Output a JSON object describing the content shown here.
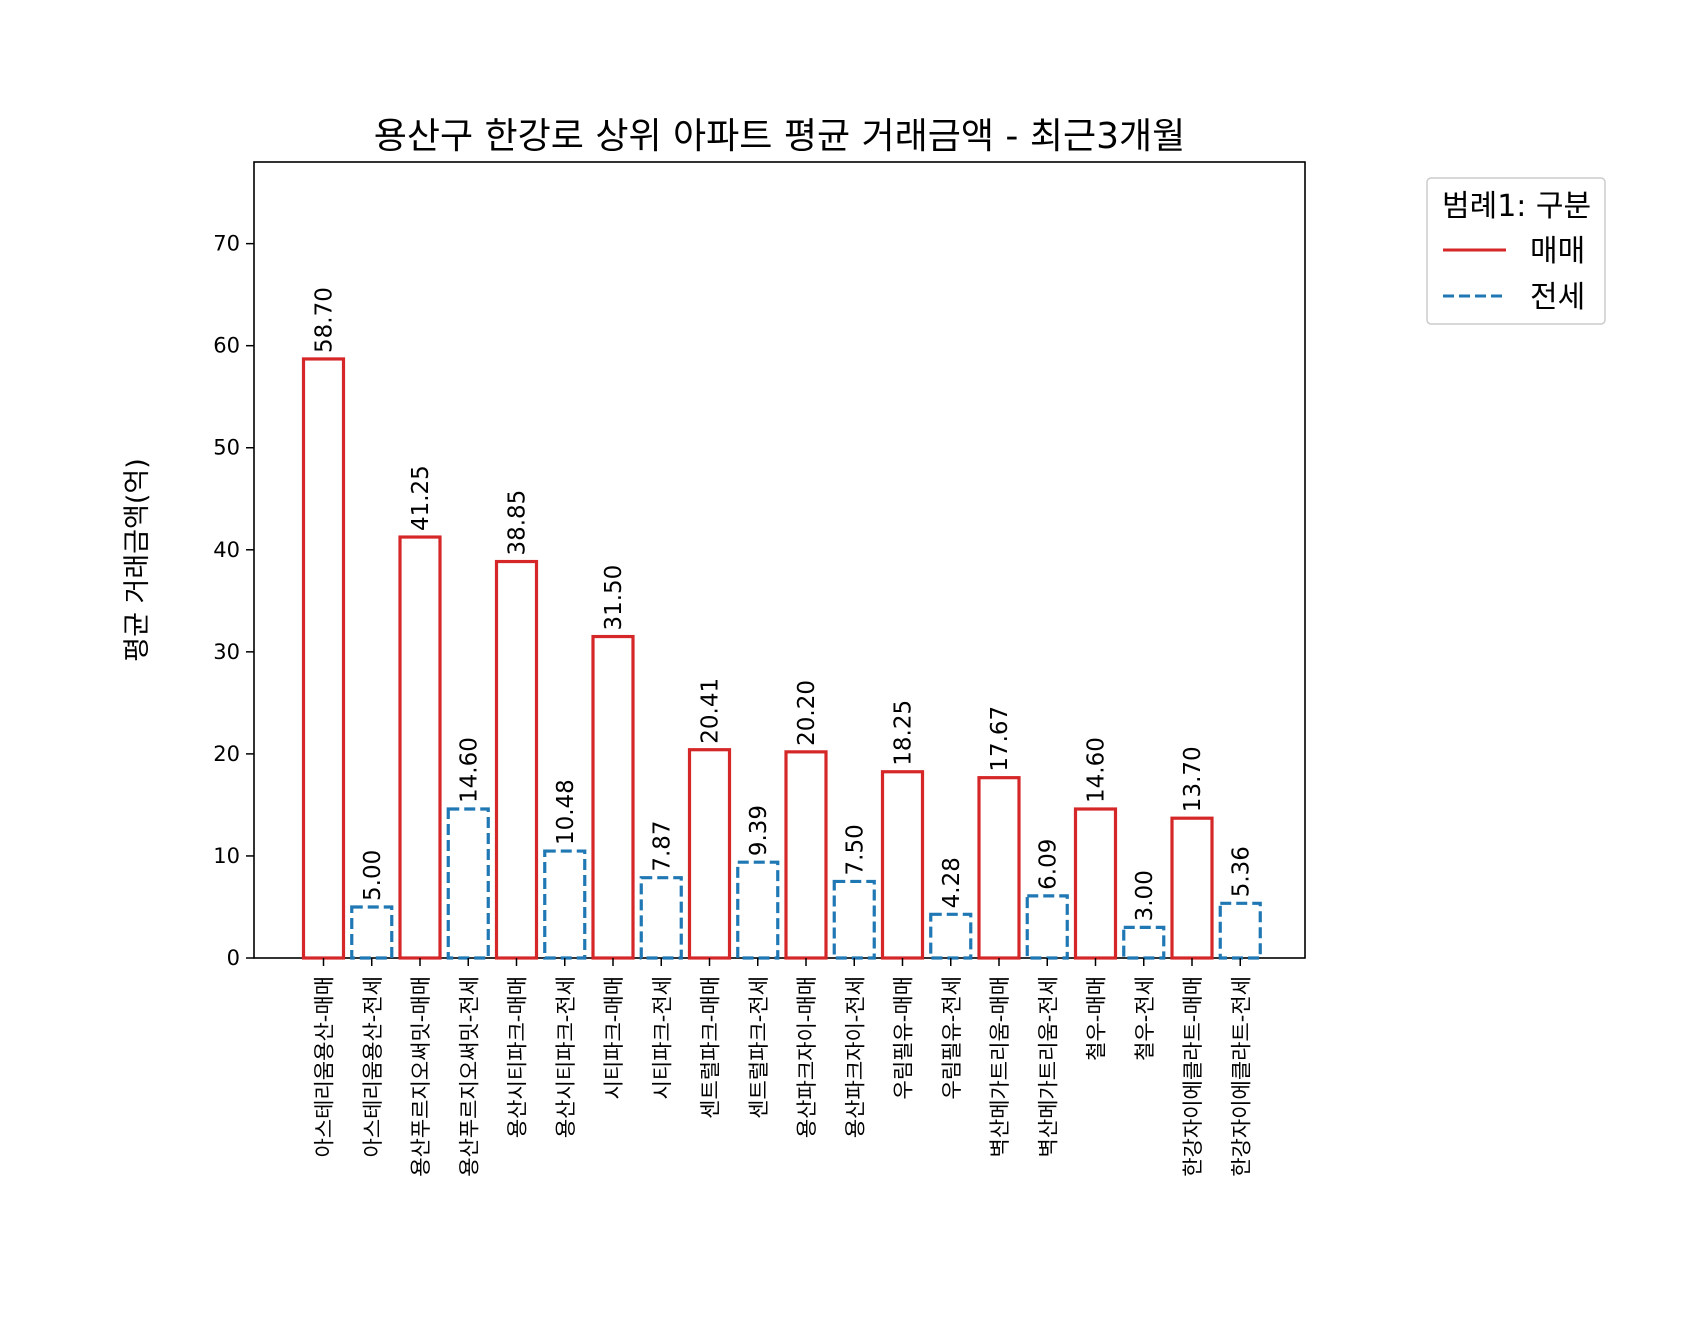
{
  "chart_data": {
    "type": "bar",
    "title": "용산구 한강로 상위 아파트 평균 거래금액 - 최근3개월",
    "xlabel": "",
    "ylabel": "평균 거래금액(억)",
    "ylim": [
      0,
      78
    ],
    "yticks": [
      0,
      10,
      20,
      30,
      40,
      50,
      60,
      70
    ],
    "grid": false,
    "legend": {
      "title": "범례1: 구분",
      "placement": "outside-upper-right",
      "entries": [
        {
          "label": "매매",
          "color": "#d62728",
          "line_style": "solid"
        },
        {
          "label": "전세",
          "color": "#1f77b4",
          "line_style": "dashed"
        }
      ]
    },
    "categories": [
      "아스테리움용산-매매",
      "아스테리움용산-전세",
      "용산푸르지오써밋-매매",
      "용산푸르지오써밋-전세",
      "용산시티파크-매매",
      "용산시티파크-전세",
      "시티파크-매매",
      "시티파크-전세",
      "센트럴파크-매매",
      "센트럴파크-전세",
      "용산파크자이-매매",
      "용산파크자이-전세",
      "우림필유-매매",
      "우림필유-전세",
      "벽산메가트리움-매매",
      "벽산메가트리움-전세",
      "철우-매매",
      "철우-전세",
      "한강자이에클라트-매매",
      "한강자이에클라트-전세"
    ],
    "values": [
      58.7,
      5.0,
      41.25,
      14.6,
      38.85,
      10.48,
      31.5,
      7.87,
      20.41,
      9.39,
      20.2,
      7.5,
      18.25,
      4.28,
      17.67,
      6.09,
      14.6,
      3.0,
      13.7,
      5.36
    ],
    "value_labels": [
      "58.70",
      "5.00",
      "41.25",
      "14.60",
      "38.85",
      "10.48",
      "31.50",
      "7.87",
      "20.41",
      "9.39",
      "20.20",
      "7.50",
      "18.25",
      "4.28",
      "17.67",
      "6.09",
      "14.60",
      "3.00",
      "13.70",
      "5.36"
    ],
    "bar_kinds": [
      "매매",
      "전세",
      "매매",
      "전세",
      "매매",
      "전세",
      "매매",
      "전세",
      "매매",
      "전세",
      "매매",
      "전세",
      "매매",
      "전세",
      "매매",
      "전세",
      "매매",
      "전세",
      "매매",
      "전세"
    ],
    "colors": {
      "매매": "#d62728",
      "전세": "#1f77b4"
    }
  }
}
